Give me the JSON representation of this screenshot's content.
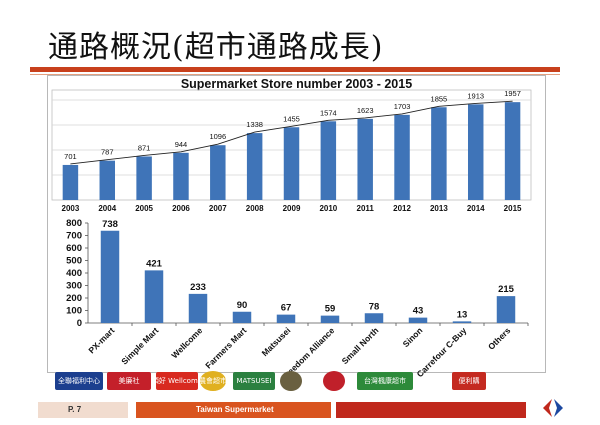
{
  "slide": {
    "title": "通路概況(超市通路成長)",
    "page": "P. 7",
    "footer_label": "Taiwan Supermarket"
  },
  "colors": {
    "accent": "#c8401c",
    "bar": "#3f74b8",
    "footer_mid": "#d9541f",
    "footer_right": "#c0281c"
  },
  "logos": [
    {
      "name": "全聯福利中心",
      "icon": "pxmart-logo",
      "bg": "#1c3f8f"
    },
    {
      "name": "美廉社",
      "icon": "simple-mart-logo",
      "bg": "#c4202a"
    },
    {
      "name": "頂好 Wellcome",
      "icon": "wellcome-logo",
      "bg": "#d82a20"
    },
    {
      "name": "農會超市",
      "icon": "farmers-mart-logo",
      "bg": "#e0b020"
    },
    {
      "name": "MATSUSEI",
      "icon": "matsusei-logo",
      "bg": "#2b8040"
    },
    {
      "name": "",
      "icon": "freedom-alliance-logo",
      "bg": "#6a6040"
    },
    {
      "name": "",
      "icon": "small-north-logo",
      "bg": "#c0202a"
    },
    {
      "name": "台灣楓康超市",
      "icon": "sinon-logo",
      "bg": "#2d8a3a"
    },
    {
      "name": "便利購",
      "icon": "carrefour-cbuy-logo",
      "bg": "#c42a20"
    }
  ],
  "chart_data": [
    {
      "type": "bar",
      "title": "Supermarket Store number 2003 - 2015",
      "categories": [
        "2003",
        "2004",
        "2005",
        "2006",
        "2007",
        "2008",
        "2009",
        "2010",
        "2011",
        "2012",
        "2013",
        "2014",
        "2015"
      ],
      "values": [
        701,
        787,
        871,
        944,
        1096,
        1338,
        1455,
        1574,
        1623,
        1703,
        1855,
        1913,
        1957
      ],
      "data_labels": [
        "701",
        "787",
        "871",
        "944",
        "1096",
        "1338",
        "1455",
        "1574",
        "1623",
        "1703",
        "1855",
        "1913",
        "1957"
      ],
      "trendline": true,
      "ylim": [
        0,
        2200
      ],
      "grid": true,
      "legend": "none"
    },
    {
      "type": "bar",
      "categories": [
        "PX-mart",
        "Simple Mart",
        "Wellcome",
        "Farmers Mart",
        "Matsusei",
        "Freedom Alliance",
        "Small North",
        "Sinon",
        "Carrefour C-Buy",
        "Others"
      ],
      "values": [
        738,
        421,
        233,
        90,
        67,
        59,
        78,
        43,
        13,
        215
      ],
      "data_labels": [
        "738",
        "421",
        "233",
        "90",
        "67",
        "59",
        "78",
        "43",
        "13",
        "215"
      ],
      "yticks": [
        "0",
        "100",
        "200",
        "300",
        "400",
        "500",
        "600",
        "700",
        "800"
      ],
      "ylim": [
        0,
        800
      ],
      "grid": false,
      "legend": "none"
    }
  ]
}
